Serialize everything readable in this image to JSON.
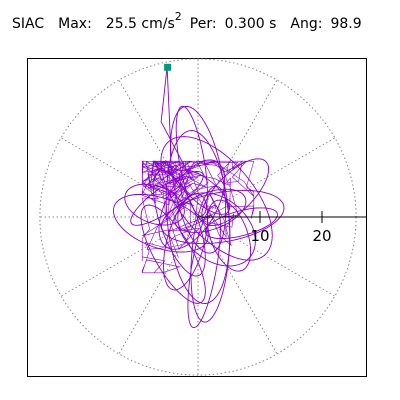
{
  "header": {
    "station": "SIAC",
    "max_label": "Max:",
    "max_value": "25.5",
    "max_unit": "cm/s",
    "max_unit_exp": "2",
    "per_label": "Per:",
    "per_value": "0.300 s",
    "ang_label": "Ang:",
    "ang_value": "98.9"
  },
  "chart_data": {
    "type": "polar-particle-motion",
    "units": "cm/s^2",
    "radial_ticks": [
      10,
      20
    ],
    "radial_tick_labels": [
      "10",
      "20"
    ],
    "r_max": 25.5,
    "grid": true,
    "spokes_deg": [
      0,
      30,
      60,
      90,
      120,
      150,
      180,
      210,
      240,
      270,
      300,
      330
    ],
    "peak": {
      "value": 25.5,
      "angle_deg": 98.9
    },
    "trace_color": "#8800cc",
    "marker_color": "#009a77",
    "trace": {
      "description": "dense particle-motion trace around origin",
      "loops": [
        {
          "x": 2,
          "y": 1,
          "a": 6,
          "b": 3,
          "rot": 20
        },
        {
          "x": -1,
          "y": 2,
          "a": 8,
          "b": 4,
          "rot": 60
        },
        {
          "x": 3,
          "y": -2,
          "a": 7,
          "b": 5,
          "rot": -40
        },
        {
          "x": -3,
          "y": -1,
          "a": 9,
          "b": 3,
          "rot": 110
        },
        {
          "x": 1,
          "y": 4,
          "a": 5,
          "b": 2,
          "rot": 140
        },
        {
          "x": 4,
          "y": 0,
          "a": 10,
          "b": 4,
          "rot": 10
        },
        {
          "x": -2,
          "y": -4,
          "a": 8,
          "b": 3,
          "rot": 75
        },
        {
          "x": 0,
          "y": 6,
          "a": 12,
          "b": 4,
          "rot": 100
        },
        {
          "x": 5,
          "y": -3,
          "a": 6,
          "b": 3,
          "rot": -70
        },
        {
          "x": -5,
          "y": 3,
          "a": 7,
          "b": 2,
          "rot": 35
        },
        {
          "x": 2,
          "y": -6,
          "a": 11,
          "b": 3,
          "rot": 85
        },
        {
          "x": -4,
          "y": -6,
          "a": 9,
          "b": 3,
          "rot": 120
        },
        {
          "x": 6,
          "y": 4,
          "a": 7,
          "b": 3,
          "rot": 45
        },
        {
          "x": -6,
          "y": -1,
          "a": 8,
          "b": 4,
          "rot": 160
        },
        {
          "x": 0,
          "y": 0,
          "a": 14,
          "b": 5,
          "rot": 95
        },
        {
          "x": 1,
          "y": -8,
          "a": 10,
          "b": 2,
          "rot": 80
        },
        {
          "x": -1,
          "y": 9,
          "a": 9,
          "b": 2,
          "rot": 100
        },
        {
          "x": 7,
          "y": -1,
          "a": 6,
          "b": 2,
          "rot": 15
        },
        {
          "x": -7,
          "y": 2,
          "a": 5,
          "b": 3,
          "rot": -20
        },
        {
          "x": 3,
          "y": 3,
          "a": 12,
          "b": 6,
          "rot": 130
        }
      ],
      "peak_stroke": {
        "from_angle_deg": 98.9,
        "from_value": 25.5,
        "to_x": -1,
        "to_y": 6
      }
    }
  }
}
